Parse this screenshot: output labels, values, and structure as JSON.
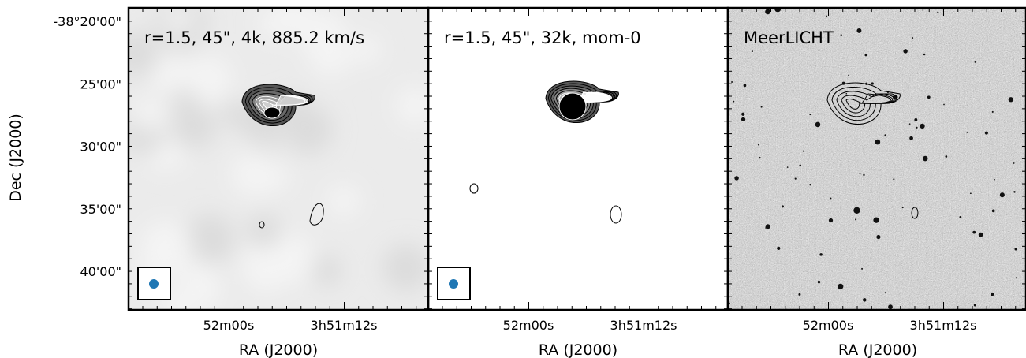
{
  "figure": {
    "y_label": "Dec (J2000)",
    "y_ticks": [
      "-38°20'00\"",
      "25'00\"",
      "30'00\"",
      "35'00\"",
      "40'00\""
    ],
    "panels": [
      {
        "label": "r=1.5, 45\", 4k, 885.2 km/s",
        "x_label": "RA (J2000)",
        "x_ticks": [
          "52m00s",
          "3h51m12s"
        ]
      },
      {
        "label": "r=1.5, 45\", 32k, mom-0",
        "x_label": "RA (J2000)",
        "x_ticks": [
          "52m00s",
          "3h51m12s"
        ]
      },
      {
        "label": "MeerLICHT",
        "x_label": "RA (J2000)",
        "x_ticks": [
          "52m00s",
          "3h51m12s"
        ]
      }
    ]
  }
}
